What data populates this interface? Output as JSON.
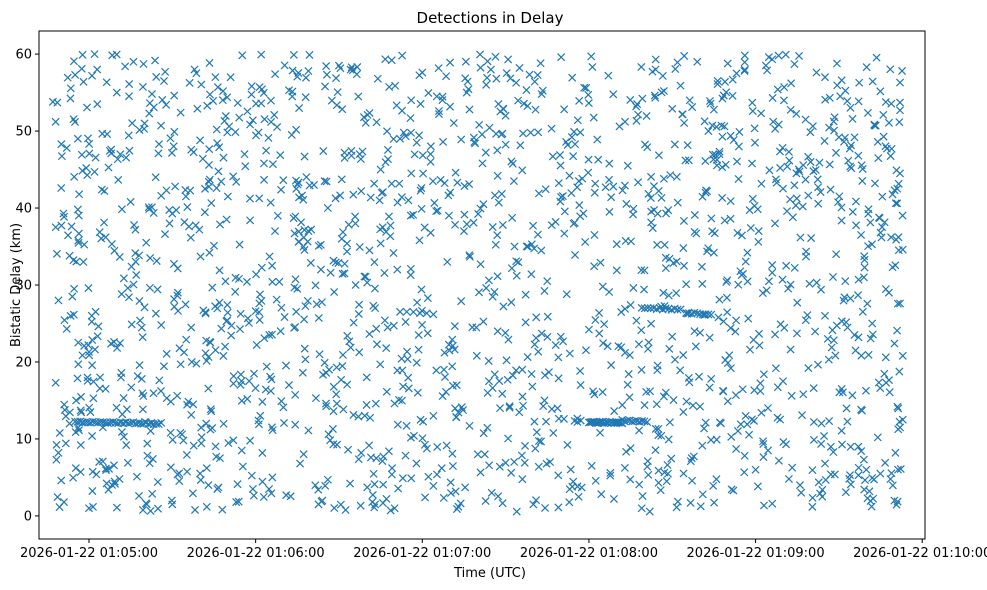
{
  "chart_data": {
    "type": "scatter",
    "title": "Detections in Delay",
    "xlabel": "Time (UTC)",
    "ylabel": "Bistatic Delay (km)",
    "marker": "x",
    "color": "#1f77b4",
    "x_unit": "seconds since 2026-01-22 01:05:00 UTC",
    "xlim": [
      -18,
      301
    ],
    "ylim": [
      -3,
      63
    ],
    "x_ticks": [
      {
        "value": 0,
        "label": "2026-01-22 01:05:00"
      },
      {
        "value": 60,
        "label": "2026-01-22 01:06:00"
      },
      {
        "value": 120,
        "label": "2026-01-22 01:07:00"
      },
      {
        "value": 180,
        "label": "2026-01-22 01:08:00"
      },
      {
        "value": 240,
        "label": "2026-01-22 01:09:00"
      },
      {
        "value": 300,
        "label": "2026-01-22 01:10:00"
      }
    ],
    "y_ticks": [
      {
        "value": 0,
        "label": "0"
      },
      {
        "value": 10,
        "label": "10"
      },
      {
        "value": 20,
        "label": "20"
      },
      {
        "value": 30,
        "label": "30"
      },
      {
        "value": 40,
        "label": "40"
      },
      {
        "value": 50,
        "label": "50"
      },
      {
        "value": 60,
        "label": "60"
      }
    ],
    "point_count_estimate": 1900,
    "x_range_data": [
      -13,
      293
    ],
    "y_range_data": [
      0.5,
      60
    ],
    "tracks": [
      {
        "x": [
          -5,
          26
        ],
        "y": [
          12.2,
          12.0
        ],
        "n": 35
      },
      {
        "x": [
          112,
          124
        ],
        "y": [
          26.6,
          26.2
        ],
        "n": 6
      },
      {
        "x": [
          180,
          192
        ],
        "y": [
          12.2,
          12.1
        ],
        "n": 25
      },
      {
        "x": [
          192,
          200
        ],
        "y": [
          12.4,
          12.3
        ],
        "n": 10
      },
      {
        "x": [
          199,
          213
        ],
        "y": [
          27.0,
          26.8
        ],
        "n": 14
      },
      {
        "x": [
          215,
          224
        ],
        "y": [
          26.4,
          26.2
        ],
        "n": 10
      }
    ],
    "points": [
      [
        -13,
        53.8
      ],
      [
        -12,
        51.2
      ],
      [
        -11,
        28.0
      ],
      [
        -12,
        37.5
      ],
      [
        -10,
        42.6
      ],
      [
        -11,
        8.2
      ],
      [
        -10,
        4.6
      ],
      [
        -9,
        1.8
      ],
      [
        -8,
        47.8
      ],
      [
        -7,
        12.0
      ],
      [
        -6,
        28.5
      ],
      [
        -5,
        57.3
      ],
      [
        -4,
        49.0
      ],
      [
        -4,
        39.8
      ],
      [
        -3,
        5.7
      ],
      [
        -2,
        33.0
      ],
      [
        -1,
        45.2
      ],
      [
        0,
        1.0
      ],
      [
        1,
        26.0
      ],
      [
        2,
        60.0
      ],
      [
        3,
        53.5
      ],
      [
        4,
        18.0
      ],
      [
        5,
        11.5
      ],
      [
        6,
        36.2
      ],
      [
        8,
        47.6
      ],
      [
        9,
        22.6
      ],
      [
        10,
        55.0
      ],
      [
        11,
        4.8
      ],
      [
        12,
        13.2
      ],
      [
        14,
        29.6
      ],
      [
        15,
        40.8
      ],
      [
        16,
        59.0
      ],
      [
        18,
        2.6
      ],
      [
        19,
        17.8
      ],
      [
        20,
        51.0
      ],
      [
        22,
        33.5
      ],
      [
        23,
        7.4
      ],
      [
        24,
        44.0
      ],
      [
        26,
        24.8
      ],
      [
        27,
        56.5
      ],
      [
        28,
        15.3
      ],
      [
        30,
        1.5
      ],
      [
        31,
        42.8
      ],
      [
        32,
        29.0
      ],
      [
        33,
        52.4
      ],
      [
        34,
        9.8
      ],
      [
        36,
        37.6
      ],
      [
        37,
        20.0
      ],
      [
        38,
        58.0
      ],
      [
        40,
        5.5
      ],
      [
        41,
        46.4
      ],
      [
        42,
        26.3
      ],
      [
        44,
        13.6
      ],
      [
        45,
        35.1
      ],
      [
        46,
        50.2
      ],
      [
        48,
        0.8
      ],
      [
        49,
        22.0
      ],
      [
        50,
        41.5
      ],
      [
        51,
        57.0
      ],
      [
        52,
        17.2
      ],
      [
        54,
        30.8
      ],
      [
        55,
        8.5
      ],
      [
        56,
        47.0
      ],
      [
        58,
        38.4
      ],
      [
        59,
        3.5
      ],
      [
        60,
        26.6
      ],
      [
        61,
        12.4
      ],
      [
        62,
        53.6
      ],
      [
        63,
        45.8
      ],
      [
        64,
        19.4
      ],
      [
        65,
        33.7
      ],
      [
        66,
        5.0
      ],
      [
        67,
        57.4
      ],
      [
        68,
        39.0
      ],
      [
        69,
        24.0
      ],
      [
        70,
        14.1
      ],
      [
        71,
        2.7
      ],
      [
        72,
        55.3
      ],
      [
        73,
        49.5
      ],
      [
        74,
        36.7
      ],
      [
        75,
        29.5
      ],
      [
        76,
        6.8
      ],
      [
        77,
        18.6
      ],
      [
        78,
        54.4
      ],
      [
        79,
        11.1
      ],
      [
        80,
        37.2
      ],
      [
        81,
        43.0
      ],
      [
        82,
        27.5
      ],
      [
        83,
        21.0
      ],
      [
        84,
        2.0
      ],
      [
        85,
        55.8
      ],
      [
        86,
        40.0
      ],
      [
        87,
        31.6
      ],
      [
        88,
        9.3
      ],
      [
        89,
        15.8
      ],
      [
        90,
        58.5
      ],
      [
        91,
        36.0
      ],
      [
        92,
        47.2
      ],
      [
        93,
        23.4
      ],
      [
        94,
        4.2
      ],
      [
        95,
        57.9
      ],
      [
        96,
        30.0
      ],
      [
        97,
        12.9
      ],
      [
        98,
        42.2
      ],
      [
        99,
        51.8
      ],
      [
        100,
        18.0
      ],
      [
        101,
        34.5
      ],
      [
        102,
        1.8
      ],
      [
        103,
        27.0
      ],
      [
        104,
        56.8
      ],
      [
        105,
        45.0
      ],
      [
        106,
        7.7
      ],
      [
        107,
        21.8
      ],
      [
        108,
        38.9
      ],
      [
        109,
        59.2
      ],
      [
        110,
        14.6
      ],
      [
        111,
        32.0
      ],
      [
        112,
        49.0
      ],
      [
        113,
        4.9
      ],
      [
        114,
        25.2
      ],
      [
        115,
        41.0
      ],
      [
        116,
        54.0
      ],
      [
        117,
        10.4
      ],
      [
        118,
        19.9
      ],
      [
        119,
        35.8
      ],
      [
        120,
        57.6
      ],
      [
        121,
        2.4
      ],
      [
        122,
        28.3
      ],
      [
        123,
        46.0
      ],
      [
        124,
        13.0
      ],
      [
        125,
        39.6
      ],
      [
        126,
        52.6
      ],
      [
        127,
        6.2
      ],
      [
        128,
        21.2
      ],
      [
        129,
        33.0
      ],
      [
        130,
        58.9
      ],
      [
        131,
        16.9
      ],
      [
        132,
        44.6
      ],
      [
        133,
        1.2
      ],
      [
        134,
        27.9
      ],
      [
        135,
        37.0
      ],
      [
        136,
        55.0
      ],
      [
        137,
        11.7
      ],
      [
        138,
        24.5
      ],
      [
        139,
        48.4
      ],
      [
        140,
        8.0
      ],
      [
        141,
        32.7
      ],
      [
        142,
        40.5
      ],
      [
        143,
        56.0
      ],
      [
        144,
        17.5
      ],
      [
        145,
        3.0
      ],
      [
        146,
        29.1
      ],
      [
        147,
        47.5
      ],
      [
        148,
        14.0
      ],
      [
        149,
        37.8
      ],
      [
        150,
        52.0
      ],
      [
        151,
        22.9
      ],
      [
        152,
        5.6
      ],
      [
        153,
        43.5
      ],
      [
        154,
        31.2
      ],
      [
        155,
        58.2
      ],
      [
        156,
        19.0
      ],
      [
        157,
        9.1
      ],
      [
        158,
        35.0
      ],
      [
        159,
        49.8
      ],
      [
        160,
        1.5
      ],
      [
        161,
        25.8
      ],
      [
        162,
        41.9
      ],
      [
        163,
        54.8
      ],
      [
        164,
        15.0
      ],
      [
        165,
        30.5
      ],
      [
        166,
        7.0
      ],
      [
        167,
        46.7
      ],
      [
        168,
        38.2
      ],
      [
        169,
        20.6
      ],
      [
        170,
        59.6
      ],
      [
        171,
        12.6
      ],
      [
        172,
        28.8
      ],
      [
        173,
        44.2
      ],
      [
        174,
        3.8
      ],
      [
        175,
        33.9
      ],
      [
        176,
        51.4
      ],
      [
        177,
        17.0
      ],
      [
        178,
        39.3
      ],
      [
        179,
        55.6
      ],
      [
        180,
        24.2
      ],
      [
        181,
        6.5
      ],
      [
        182,
        36.5
      ],
      [
        183,
        48.9
      ],
      [
        184,
        10.8
      ],
      [
        185,
        29.8
      ],
      [
        186,
        42.7
      ],
      [
        187,
        57.2
      ],
      [
        188,
        19.6
      ],
      [
        189,
        2.2
      ],
      [
        190,
        35.3
      ],
      [
        191,
        50.6
      ],
      [
        192,
        14.4
      ],
      [
        193,
        26.9
      ],
      [
        194,
        45.5
      ],
      [
        195,
        8.8
      ],
      [
        196,
        39.9
      ],
      [
        197,
        53.2
      ],
      [
        198,
        22.3
      ],
      [
        199,
        1.0
      ],
      [
        200,
        31.9
      ],
      [
        201,
        47.9
      ],
      [
        202,
        16.2
      ],
      [
        203,
        37.4
      ],
      [
        204,
        58.0
      ],
      [
        205,
        11.3
      ],
      [
        206,
        27.2
      ],
      [
        207,
        43.8
      ],
      [
        208,
        4.5
      ],
      [
        209,
        33.4
      ],
      [
        210,
        52.9
      ],
      [
        211,
        20.3
      ],
      [
        212,
        40.7
      ],
      [
        213,
        55.9
      ],
      [
        214,
        13.5
      ],
      [
        215,
        30.1
      ],
      [
        216,
        46.2
      ],
      [
        217,
        7.5
      ],
      [
        218,
        36.9
      ],
      [
        219,
        59.0
      ],
      [
        220,
        23.8
      ],
      [
        221,
        2.8
      ],
      [
        222,
        42.0
      ],
      [
        223,
        50.0
      ],
      [
        224,
        17.8
      ],
      [
        225,
        34.2
      ],
      [
        226,
        9.9
      ],
      [
        227,
        28.1
      ],
      [
        228,
        45.3
      ],
      [
        229,
        56.4
      ],
      [
        230,
        14.9
      ],
      [
        231,
        38.6
      ],
      [
        232,
        3.3
      ],
      [
        233,
        25.4
      ],
      [
        234,
        48.0
      ],
      [
        235,
        31.3
      ],
      [
        236,
        57.8
      ],
      [
        237,
        11.9
      ],
      [
        238,
        21.6
      ],
      [
        239,
        41.2
      ],
      [
        240,
        6.0
      ],
      [
        241,
        35.6
      ],
      [
        242,
        52.3
      ],
      [
        243,
        18.4
      ],
      [
        244,
        29.3
      ],
      [
        245,
        44.9
      ],
      [
        246,
        1.6
      ],
      [
        247,
        38.0
      ],
      [
        248,
        55.4
      ],
      [
        249,
        24.9
      ],
      [
        250,
        9.6
      ],
      [
        251,
        32.5
      ],
      [
        252,
        47.3
      ],
      [
        253,
        15.6
      ],
      [
        254,
        58.7
      ],
      [
        255,
        27.7
      ],
      [
        256,
        4.0
      ],
      [
        257,
        40.2
      ],
      [
        258,
        51.5
      ],
      [
        259,
        19.2
      ],
      [
        260,
        36.1
      ],
      [
        261,
        12.2
      ],
      [
        262,
        30.3
      ],
      [
        263,
        45.9
      ],
      [
        264,
        2.5
      ],
      [
        265,
        57.0
      ],
      [
        266,
        23.0
      ],
      [
        267,
        42.4
      ],
      [
        268,
        8.3
      ],
      [
        269,
        34.0
      ],
      [
        270,
        49.2
      ],
      [
        271,
        16.5
      ],
      [
        272,
        28.4
      ],
      [
        273,
        53.9
      ],
      [
        274,
        5.3
      ],
      [
        275,
        39.5
      ],
      [
        276,
        21.5
      ],
      [
        277,
        46.8
      ],
      [
        278,
        13.8
      ],
      [
        279,
        31.0
      ],
      [
        280,
        58.3
      ],
      [
        281,
        3.2
      ],
      [
        282,
        25.0
      ],
      [
        283,
        43.2
      ],
      [
        284,
        10.2
      ],
      [
        285,
        36.8
      ],
      [
        286,
        52.1
      ],
      [
        287,
        17.3
      ],
      [
        288,
        29.0
      ],
      [
        289,
        47.7
      ],
      [
        290,
        2.0
      ],
      [
        291,
        40.6
      ],
      [
        292,
        56.3
      ],
      [
        293,
        12.5
      ],
      [
        292,
        27.6
      ],
      [
        293,
        34.6
      ],
      [
        292,
        44.5
      ],
      [
        293,
        20.8
      ],
      [
        292,
        52.7
      ],
      [
        -12,
        17.3
      ],
      [
        -8,
        24.3
      ],
      [
        -3,
        13.7
      ],
      [
        2,
        44.7
      ],
      [
        7,
        3.4
      ],
      [
        13,
        58.4
      ],
      [
        17,
        31.3
      ],
      [
        21,
        9.4
      ],
      [
        25,
        47.1
      ],
      [
        29,
        38.0
      ],
      [
        35,
        22.9
      ],
      [
        39,
        52.9
      ],
      [
        43,
        4.0
      ],
      [
        47,
        31.9
      ],
      [
        53,
        43.4
      ],
      [
        57,
        15.2
      ],
      [
        -7,
        33.8
      ],
      [
        0,
        21.3
      ],
      [
        6,
        16.5
      ],
      [
        14,
        6.9
      ],
      [
        20,
        27.1
      ],
      [
        26,
        41.6
      ],
      [
        33,
        19.7
      ],
      [
        40,
        48.8
      ],
      [
        47,
        27.7
      ],
      [
        53,
        1.8
      ],
      [
        59,
        51.4
      ],
      [
        66,
        30.4
      ],
      [
        72,
        17.0
      ],
      [
        79,
        57.8
      ],
      [
        86,
        4.7
      ],
      [
        92,
        31.5
      ],
      [
        98,
        8.2
      ],
      [
        105,
        35.4
      ],
      [
        111,
        18.9
      ],
      [
        118,
        48.5
      ],
      [
        124,
        3.9
      ],
      [
        131,
        22.1
      ],
      [
        137,
        52.8
      ],
      [
        143,
        29.6
      ],
      [
        150,
        6.9
      ],
      [
        156,
        44.9
      ],
      [
        163,
        23.7
      ],
      [
        169,
        1.1
      ],
      [
        175,
        48.3
      ],
      [
        182,
        15.8
      ],
      [
        188,
        41.4
      ],
      [
        195,
        27.4
      ],
      [
        201,
        6.4
      ],
      [
        207,
        55.2
      ],
      [
        214,
        34.8
      ],
      [
        220,
        14.2
      ],
      [
        227,
        47.0
      ],
      [
        233,
        8.7
      ],
      [
        239,
        52.6
      ],
      [
        246,
        31.6
      ],
      [
        252,
        4.8
      ],
      [
        258,
        43.7
      ],
      [
        265,
        26.0
      ],
      [
        271,
        56.6
      ],
      [
        277,
        9.0
      ],
      [
        284,
        48.6
      ],
      [
        290,
        22.4
      ]
    ]
  }
}
